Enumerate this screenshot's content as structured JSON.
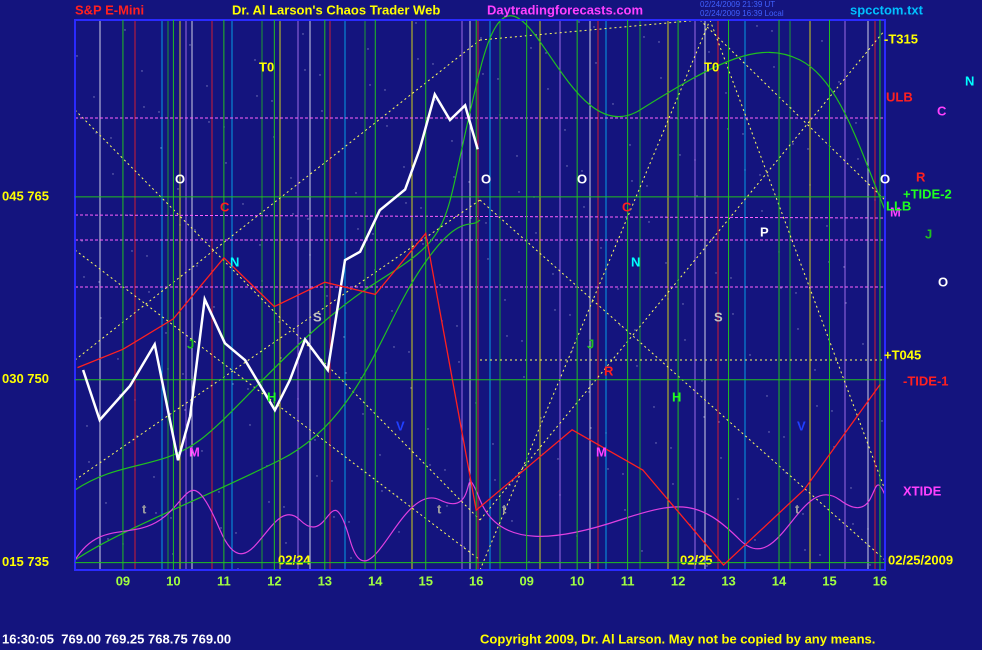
{
  "chart_data": {
    "type": "line",
    "title": "Dr. Al Larson's Chaos Trader Web",
    "subtitle": "Daytradingforecasts.com",
    "timestamps": [
      "02/24/2009 21:39 UT",
      "02/24/2009 16:39 Local"
    ],
    "x": [
      -0.79,
      -0.46,
      0.14,
      0.63,
      1.09,
      1.33,
      1.62,
      2.02,
      2.42,
      3.01,
      3.31,
      3.61,
      4.06,
      4.4,
      4.7,
      5.09,
      5.59,
      5.88,
      6.18,
      6.48,
      6.78,
      7.03
    ],
    "series": [
      {
        "name": "S&P E-Mini",
        "color": "#ffffff",
        "values": [
          750.8,
          746.7,
          749.5,
          752.9,
          743.4,
          747,
          756.6,
          753,
          751.6,
          747.5,
          750,
          753.3,
          750.8,
          759.8,
          760.5,
          763.9,
          765.6,
          768.9,
          773.4,
          771.3,
          772.5,
          768.9
        ]
      },
      {
        "name": "spcctom.txt",
        "color": "#ff2020",
        "x": [
          -0.9,
          0,
          1,
          2,
          3,
          4,
          5,
          6,
          7,
          8.9,
          10.3,
          11.9,
          13.5,
          15
        ],
        "values": [
          751,
          752.5,
          755,
          760,
          756,
          758,
          757,
          762,
          739.3,
          745.9,
          742.6,
          734.8,
          741,
          749.6
        ]
      }
    ],
    "xlim": [
      -0.95,
      15.1
    ],
    "xticks": [
      {
        "value": 0,
        "label": "09"
      },
      {
        "value": 1,
        "label": "10"
      },
      {
        "value": 2,
        "label": "11"
      },
      {
        "value": 3,
        "label": "12"
      },
      {
        "value": 4,
        "label": "13"
      },
      {
        "value": 5,
        "label": "14"
      },
      {
        "value": 6,
        "label": "15"
      },
      {
        "value": 7,
        "label": "16"
      },
      {
        "value": 8,
        "label": "09"
      },
      {
        "value": 9,
        "label": "10"
      },
      {
        "value": 10,
        "label": "11"
      },
      {
        "value": 11,
        "label": "12"
      },
      {
        "value": 12,
        "label": "13"
      },
      {
        "value": 13,
        "label": "14"
      },
      {
        "value": 14,
        "label": "15"
      },
      {
        "value": 15,
        "label": "16"
      }
    ],
    "ylim": [
      734.4,
      779.5
    ],
    "yticks": [
      {
        "value": 735,
        "label": "015 735"
      },
      {
        "value": 750,
        "label": "030 750"
      },
      {
        "value": 765,
        "label": "045 765"
      }
    ],
    "grid": true,
    "dates": [
      "02/24",
      "02/25",
      "02/25/2009"
    ],
    "annotations": [
      {
        "text": "T0",
        "color": "#ffff00"
      },
      {
        "text": "T0",
        "color": "#ffff00"
      },
      {
        "text": "O",
        "color": "#ffffff"
      },
      {
        "text": "O",
        "color": "#ffffff"
      },
      {
        "text": "O",
        "color": "#ffffff"
      },
      {
        "text": "O",
        "color": "#ffffff"
      },
      {
        "text": "O",
        "color": "#ffffff"
      },
      {
        "text": "C",
        "color": "#ff2020"
      },
      {
        "text": "C",
        "color": "#ff2020"
      },
      {
        "text": "C",
        "color": "#ff40ff"
      },
      {
        "text": "N",
        "color": "#00ffff"
      },
      {
        "text": "N",
        "color": "#00ffff"
      },
      {
        "text": "N",
        "color": "#00ffff"
      },
      {
        "text": "J",
        "color": "#20c020"
      },
      {
        "text": "J",
        "color": "#20c020"
      },
      {
        "text": "J",
        "color": "#20c020"
      },
      {
        "text": "M",
        "color": "#ff40ff"
      },
      {
        "text": "M",
        "color": "#ff40ff"
      },
      {
        "text": "M",
        "color": "#ff40ff"
      },
      {
        "text": "R",
        "color": "#ff2020"
      },
      {
        "text": "R",
        "color": "#ff2020"
      },
      {
        "text": "S",
        "color": "#c0c0c0"
      },
      {
        "text": "S",
        "color": "#c0c0c0"
      },
      {
        "text": "H",
        "color": "#20ff20"
      },
      {
        "text": "H",
        "color": "#20ff20"
      },
      {
        "text": "t",
        "color": "#a0a0a0"
      },
      {
        "text": "t",
        "color": "#a0a0a0"
      },
      {
        "text": "t",
        "color": "#a0a0a0"
      },
      {
        "text": "t",
        "color": "#a0a0a0"
      },
      {
        "text": "P",
        "color": "#ffffff"
      },
      {
        "text": "V",
        "color": "#2040ff"
      },
      {
        "text": "V",
        "color": "#2040ff"
      },
      {
        "text": "-T315",
        "color": "#ffff00"
      },
      {
        "text": "ULB",
        "color": "#ff2020"
      },
      {
        "text": "+TIDE-2",
        "color": "#20ff20"
      },
      {
        "text": "LLB",
        "color": "#20ff20"
      },
      {
        "text": "+T045",
        "color": "#ffff00"
      },
      {
        "text": "-TIDE-1",
        "color": "#ff2020"
      },
      {
        "text": "XTIDE",
        "color": "#ff40ff"
      }
    ],
    "status": "16:30:05  769.00 769.25 768.75 769.00",
    "copyright": "Copyright 2009, Dr. Al Larson. May not be copied by any means."
  }
}
